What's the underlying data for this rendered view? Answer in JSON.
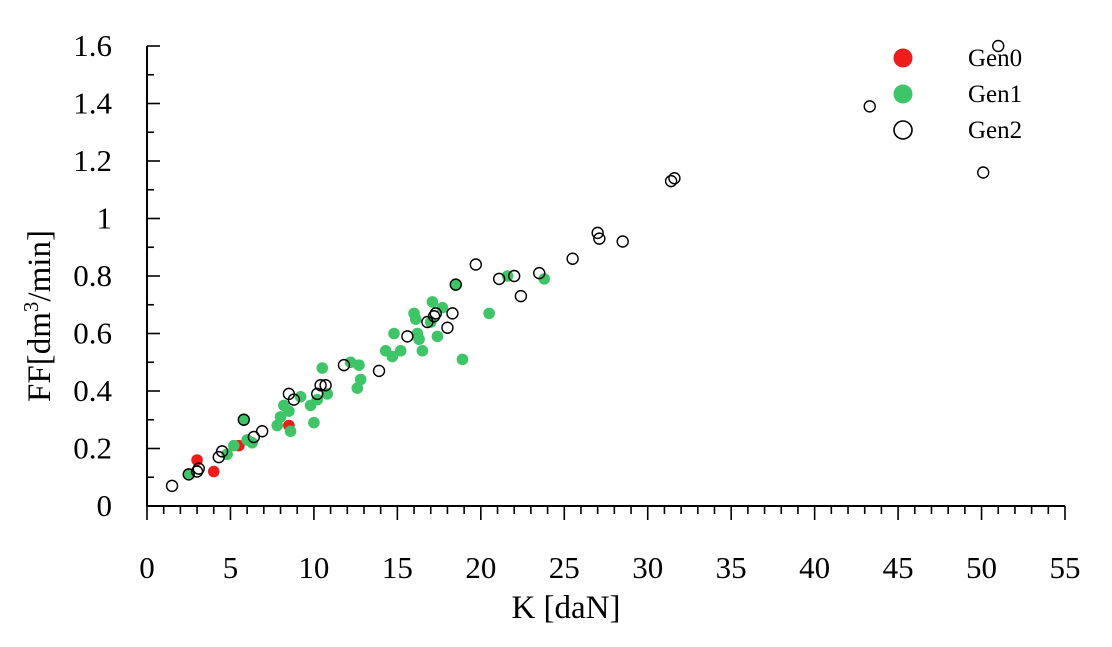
{
  "chart_data": {
    "type": "scatter",
    "xlabel": "K [daN]",
    "ylabel_parts": [
      "FF[dm",
      "3",
      "/min]"
    ],
    "xlim": [
      0,
      55
    ],
    "ylim": [
      0,
      1.6
    ],
    "x_ticks": [
      0,
      5,
      10,
      15,
      20,
      25,
      30,
      35,
      40,
      45,
      50,
      55
    ],
    "x_tick_labels": [
      "0",
      "5",
      "10",
      "15",
      "20",
      "25",
      "30",
      "35",
      "40",
      "45",
      "50",
      "55"
    ],
    "y_ticks": [
      0,
      0.2,
      0.4,
      0.6,
      0.8,
      1.0,
      1.2,
      1.4,
      1.6
    ],
    "y_tick_labels": [
      "0",
      "0.2",
      "0.4",
      "0.6",
      "0.8",
      "1",
      "1.2",
      "1.4",
      "1.6"
    ],
    "x_minor_step": 1,
    "y_minor_step": 0.1,
    "legend_position": "top-right",
    "series": [
      {
        "name": "Gen0",
        "marker": "filled-circle",
        "color": "#ee1c1c",
        "points": [
          [
            3.0,
            0.16
          ],
          [
            4.0,
            0.12
          ],
          [
            5.5,
            0.21
          ],
          [
            8.5,
            0.28
          ]
        ]
      },
      {
        "name": "Gen1",
        "marker": "filled-circle",
        "color": "#3ec567",
        "points": [
          [
            2.5,
            0.11
          ],
          [
            4.8,
            0.18
          ],
          [
            5.2,
            0.21
          ],
          [
            5.8,
            0.3
          ],
          [
            6.0,
            0.23
          ],
          [
            6.3,
            0.22
          ],
          [
            7.8,
            0.28
          ],
          [
            8.0,
            0.31
          ],
          [
            8.2,
            0.35
          ],
          [
            8.5,
            0.33
          ],
          [
            8.6,
            0.26
          ],
          [
            9.2,
            0.38
          ],
          [
            9.8,
            0.35
          ],
          [
            10.0,
            0.29
          ],
          [
            10.2,
            0.37
          ],
          [
            10.5,
            0.48
          ],
          [
            10.8,
            0.39
          ],
          [
            12.2,
            0.5
          ],
          [
            12.6,
            0.41
          ],
          [
            12.7,
            0.49
          ],
          [
            12.8,
            0.44
          ],
          [
            14.3,
            0.54
          ],
          [
            14.7,
            0.52
          ],
          [
            14.8,
            0.6
          ],
          [
            15.2,
            0.54
          ],
          [
            16.0,
            0.67
          ],
          [
            16.1,
            0.65
          ],
          [
            16.2,
            0.6
          ],
          [
            16.3,
            0.58
          ],
          [
            16.5,
            0.54
          ],
          [
            17.0,
            0.64
          ],
          [
            17.1,
            0.71
          ],
          [
            17.4,
            0.59
          ],
          [
            17.7,
            0.69
          ],
          [
            18.5,
            0.77
          ],
          [
            18.9,
            0.51
          ],
          [
            20.5,
            0.67
          ],
          [
            21.6,
            0.8
          ],
          [
            23.8,
            0.79
          ]
        ]
      },
      {
        "name": "Gen2",
        "marker": "open-circle",
        "color": "#000000",
        "points": [
          [
            1.5,
            0.07
          ],
          [
            2.5,
            0.11
          ],
          [
            3.0,
            0.12
          ],
          [
            3.1,
            0.13
          ],
          [
            4.3,
            0.17
          ],
          [
            4.5,
            0.19
          ],
          [
            5.8,
            0.3
          ],
          [
            6.4,
            0.24
          ],
          [
            6.9,
            0.26
          ],
          [
            8.5,
            0.39
          ],
          [
            8.8,
            0.37
          ],
          [
            10.2,
            0.39
          ],
          [
            10.4,
            0.42
          ],
          [
            10.7,
            0.42
          ],
          [
            11.8,
            0.49
          ],
          [
            13.9,
            0.47
          ],
          [
            15.6,
            0.59
          ],
          [
            16.8,
            0.64
          ],
          [
            17.2,
            0.66
          ],
          [
            17.3,
            0.67
          ],
          [
            18.0,
            0.62
          ],
          [
            18.3,
            0.67
          ],
          [
            18.5,
            0.77
          ],
          [
            19.7,
            0.84
          ],
          [
            21.1,
            0.79
          ],
          [
            22.0,
            0.8
          ],
          [
            22.4,
            0.73
          ],
          [
            23.5,
            0.81
          ],
          [
            25.5,
            0.86
          ],
          [
            27.0,
            0.95
          ],
          [
            27.1,
            0.93
          ],
          [
            28.5,
            0.92
          ],
          [
            31.4,
            1.13
          ],
          [
            31.6,
            1.14
          ],
          [
            43.3,
            1.39
          ],
          [
            50.1,
            1.16
          ],
          [
            51.0,
            1.6
          ]
        ]
      }
    ]
  }
}
